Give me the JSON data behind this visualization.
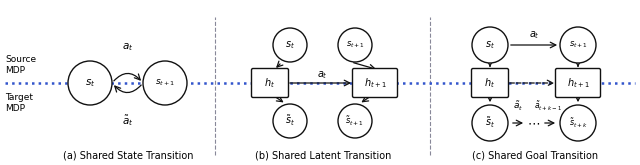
{
  "bg_color": "#ffffff",
  "fig_width": 6.4,
  "fig_height": 1.65,
  "dpi": 100,
  "panels": [
    "(a) Shared State Transition",
    "(b) Shared Latent Transition",
    "(c) Shared Goal Transition"
  ],
  "sep_color": "#888899",
  "dot_color": "#3355cc",
  "node_fc": "#ffffff",
  "node_ec": "#111111",
  "arrow_color": "#111111"
}
